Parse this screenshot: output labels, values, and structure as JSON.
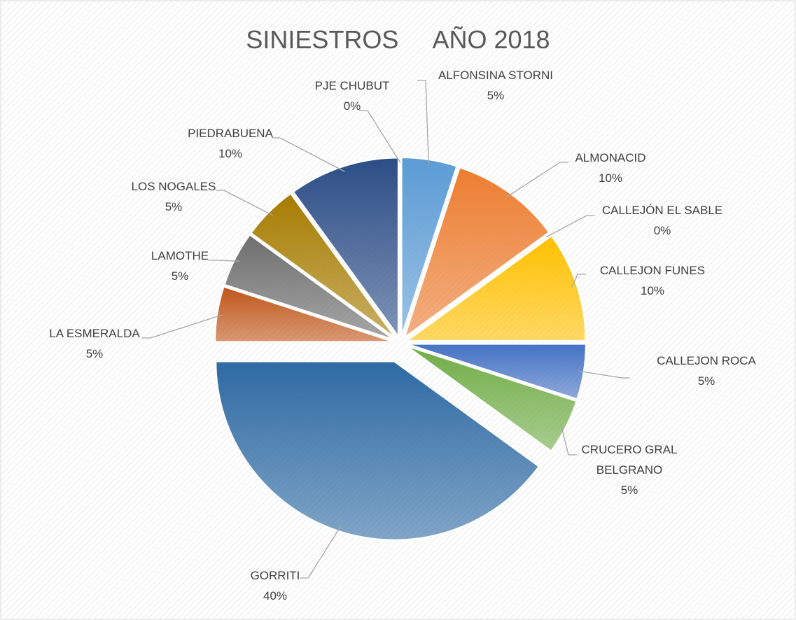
{
  "chart_data": {
    "type": "pie",
    "title": "SINIESTROS     AÑO 2018",
    "categories": [
      "ALFONSINA STORNI",
      "ALMONACID",
      "CALLEJÓN EL SABLE",
      "CALLEJON FUNES",
      "CALLEJON ROCA",
      "CRUCERO GRAL BELGRANO",
      "GORRITI",
      "LA ESMERALDA",
      "LAMOTHE",
      "LOS NOGALES",
      "PIEDRABUENA",
      "PJE CHUBUT"
    ],
    "values": [
      5,
      10,
      0,
      10,
      5,
      5,
      40,
      5,
      5,
      5,
      10,
      0
    ],
    "value_labels": [
      "5%",
      "10%",
      "0%",
      "10%",
      "5%",
      "5%",
      "40%",
      "5%",
      "5%",
      "5%",
      "10%",
      "0%"
    ],
    "colors": [
      "#5b9bd5",
      "#ed7d31",
      "#a5a5a5",
      "#ffc000",
      "#4472c4",
      "#70ad47",
      "#2e6aa3",
      "#c0561a",
      "#6e6e6e",
      "#a67c00",
      "#2b4d86",
      "#43682b"
    ]
  }
}
